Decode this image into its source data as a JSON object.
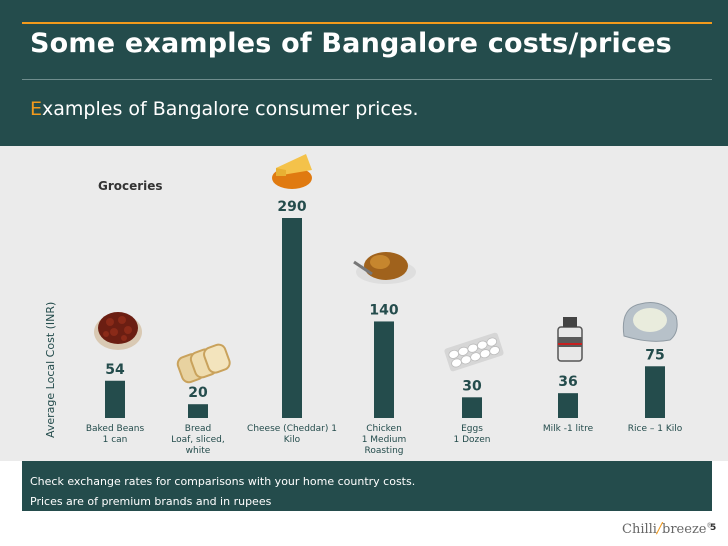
{
  "header": {
    "title": "Some examples of Bangalore costs/prices",
    "subtitle_first": "E",
    "subtitle_rest": "xamples of Bangalore consumer prices."
  },
  "footer": {
    "line1": "Check exchange rates for comparisons with your home country costs.",
    "line2": "Prices are of premium brands and in rupees"
  },
  "page_number": "5",
  "logo": {
    "left": "Chilli",
    "slash": "/",
    "right": "breeze",
    "mark": "®"
  },
  "colors": {
    "bar": "#244c4c",
    "header": "#244c4c",
    "accent": "#f29a1c",
    "chart_bg": "#ebebeb"
  },
  "icons": [
    "baked-beans-icon",
    "bread-icon",
    "cheese-icon",
    "roast-chicken-icon",
    "eggs-icon",
    "milk-can-icon",
    "rice-icon"
  ],
  "chart_data": {
    "type": "bar",
    "title": "Groceries",
    "ylabel": "Average Local Cost (INR)",
    "xlabel": "",
    "categories": [
      [
        "Baked Beans",
        "1 can"
      ],
      [
        "Bread",
        "Loaf, sliced,",
        "white"
      ],
      [
        "Cheese (Cheddar) 1",
        "Kilo"
      ],
      [
        "Chicken",
        "1 Medium",
        "Roasting"
      ],
      [
        "Eggs",
        "1 Dozen"
      ],
      [
        "Milk -1 litre"
      ],
      [
        "Rice – 1 Kilo"
      ]
    ],
    "values": [
      54,
      20,
      290,
      140,
      30,
      36,
      75
    ],
    "ylim": [
      0,
      290
    ],
    "grid": false,
    "legend": "none"
  }
}
